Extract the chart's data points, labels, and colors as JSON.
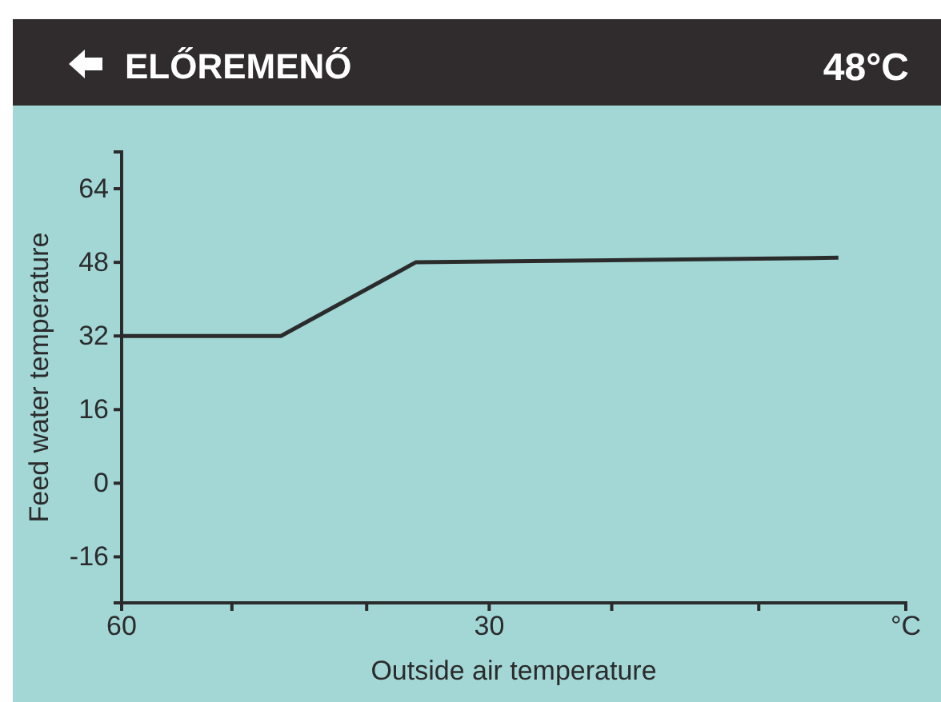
{
  "chart_data": {
    "type": "line",
    "title": "ELŐREMENŐ",
    "subtitle": "48°C",
    "xlabel": "Outside air temperature",
    "ylabel": "Feed water temperature",
    "x": [
      60,
      47,
      36,
      1.5
    ],
    "series": [
      {
        "color": "#2b2b2b",
        "values": [
          32,
          32,
          48,
          49
        ]
      }
    ],
    "xlim": [
      60,
      -4
    ],
    "xticks": [
      60,
      {
        "value": 51,
        "label": null
      },
      {
        "value": 40,
        "label": null
      },
      30,
      {
        "value": 20,
        "label": null
      },
      {
        "value": 8,
        "label": null
      },
      {
        "value": -4,
        "label": "°C"
      }
    ],
    "ylim": [
      -26,
      72
    ],
    "yticks": [
      -16,
      0,
      16,
      32,
      48,
      64
    ],
    "grid": false,
    "marker": "none",
    "line_style": "solid"
  }
}
